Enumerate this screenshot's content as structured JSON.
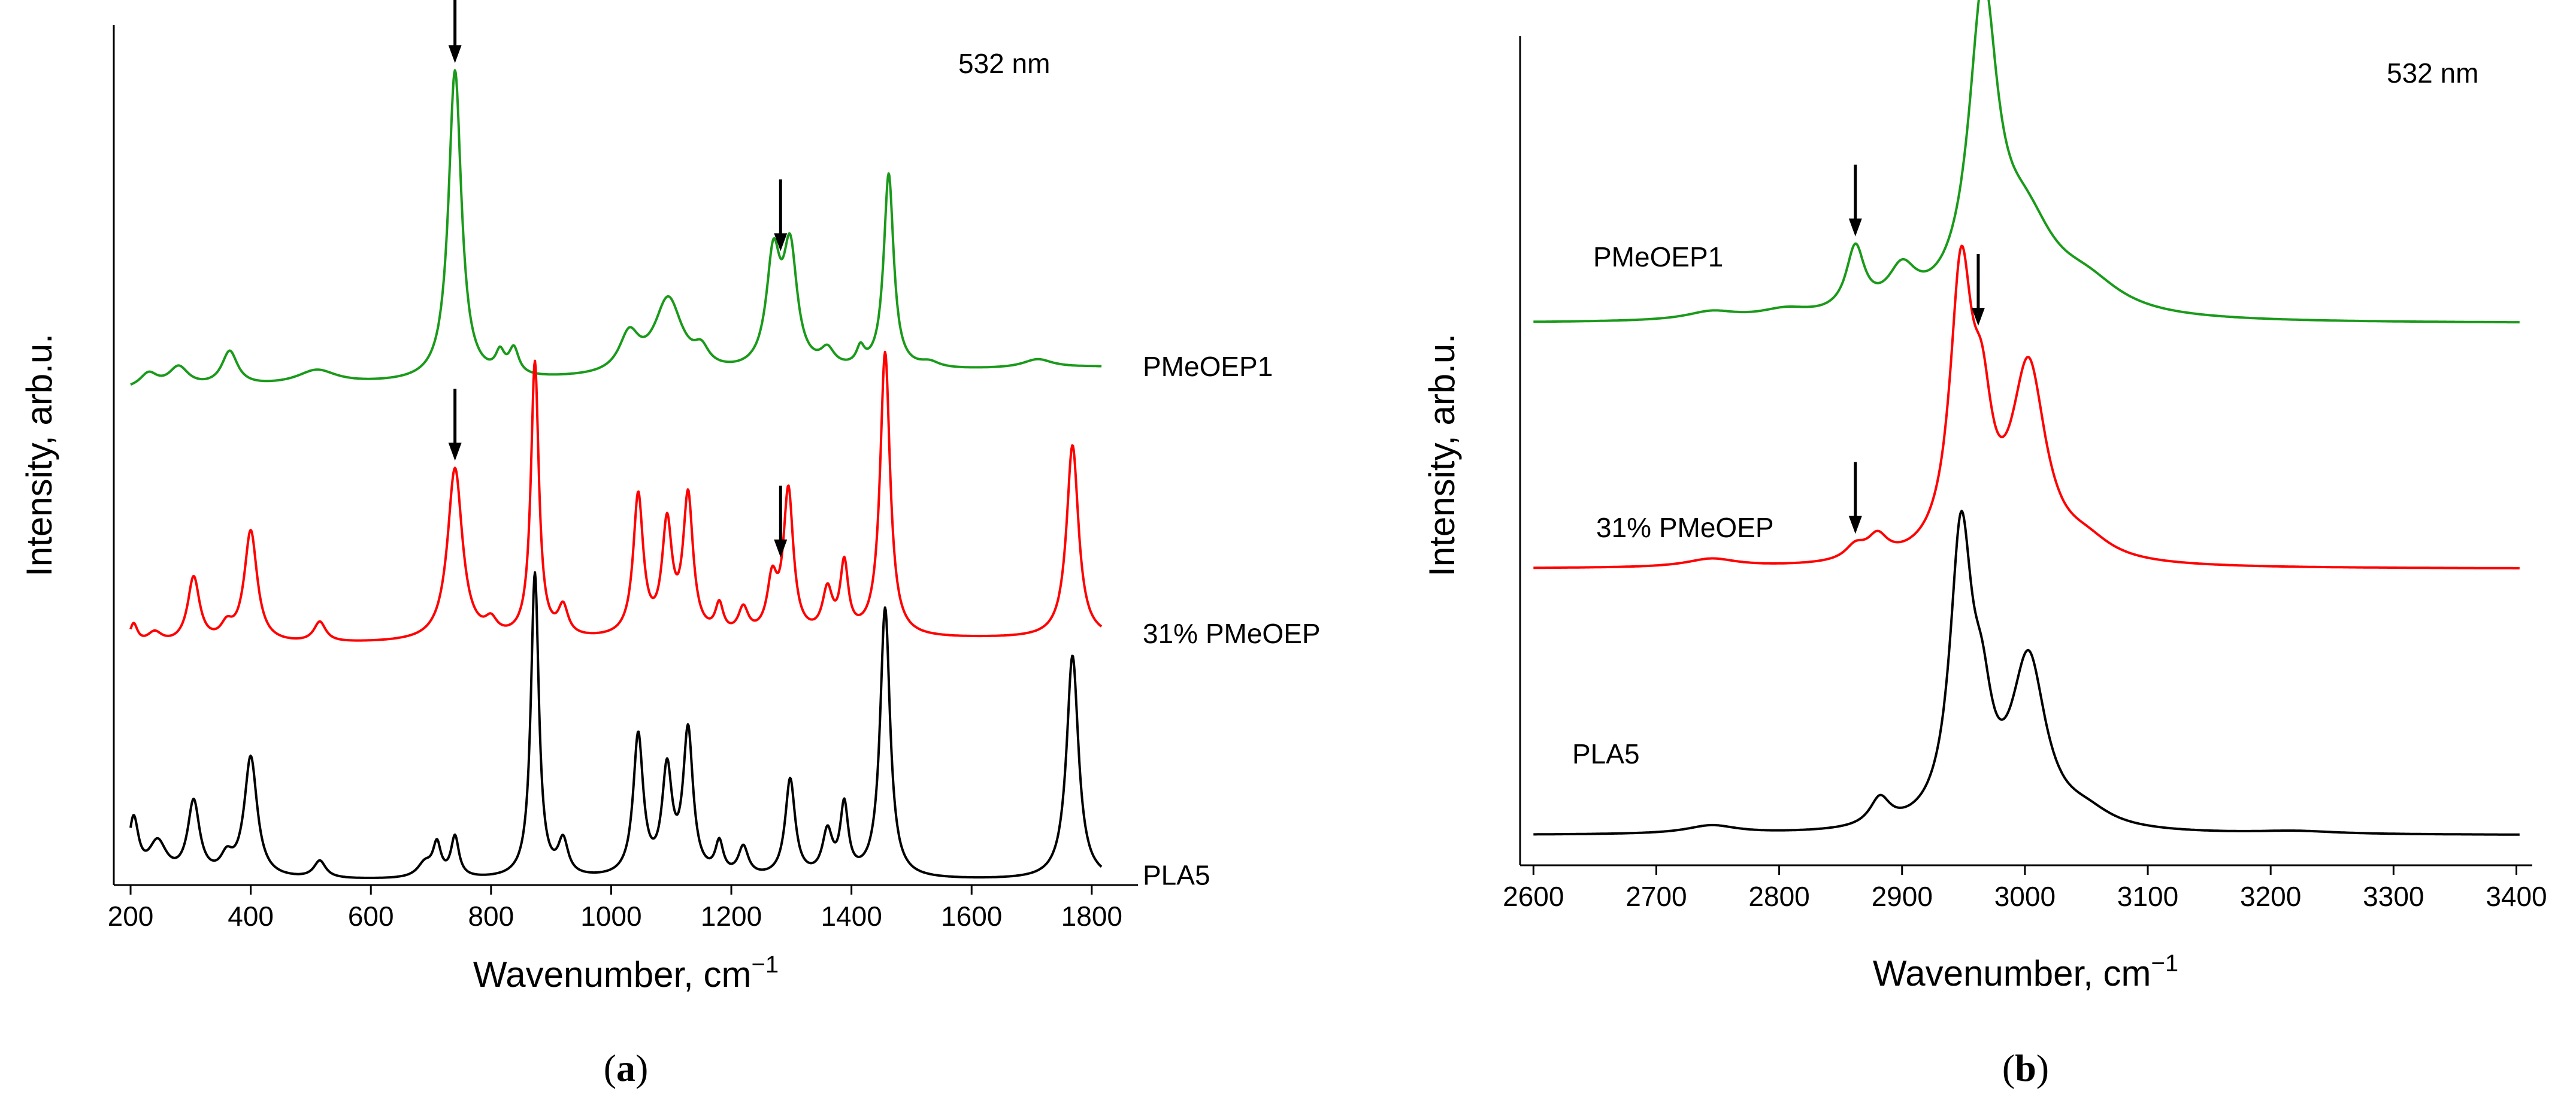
{
  "colors": {
    "PMeOEP1": "#1a9a1a",
    "31% PMeOEP": "#ff0000",
    "PLA5": "#000000"
  },
  "panel_labels": [
    {
      "open": "(",
      "letter": "a",
      "close": ")"
    },
    {
      "open": "(",
      "letter": "b",
      "close": ")"
    }
  ],
  "chart_data": [
    {
      "type": "line",
      "panel": "a",
      "title": "",
      "annotation": "532 nm",
      "xlabel_base": "Wavenumber, cm",
      "xlabel_sup": "−1",
      "ylabel": "Intensity, arb.u.",
      "xlim": [
        190,
        1855
      ],
      "xticks": [
        200,
        400,
        600,
        800,
        1000,
        1200,
        1400,
        1600,
        1800
      ],
      "ylim": [
        0,
        3.6
      ],
      "series": [
        {
          "name": "PMeOEP1",
          "color": "#1a9a1a",
          "offset": 2.32,
          "label_x": 1810,
          "baseline": [
            [
              200,
              0.0
            ],
            [
              600,
              0.02
            ],
            [
              1000,
              0.04
            ],
            [
              1400,
              0.06
            ],
            [
              1800,
              0.08
            ],
            [
              1850,
              0.08
            ]
          ],
          "peaks": [
            [
              230,
              0.05,
              18
            ],
            [
              280,
              0.07,
              20
            ],
            [
              365,
              0.12,
              16
            ],
            [
              510,
              0.05,
              40
            ],
            [
              740,
              1.08,
              13
            ],
            [
              815,
              0.07,
              9
            ],
            [
              838,
              0.09,
              10
            ],
            [
              1030,
              0.13,
              20
            ],
            [
              1095,
              0.26,
              28
            ],
            [
              1150,
              0.06,
              15
            ],
            [
              1270,
              0.38,
              14
            ],
            [
              1298,
              0.4,
              14
            ],
            [
              1360,
              0.06,
              14
            ],
            [
              1415,
              0.06,
              8
            ],
            [
              1462,
              0.68,
              10
            ],
            [
              1530,
              0.02,
              20
            ],
            [
              1710,
              0.03,
              30
            ]
          ],
          "arrows_x": [
            740,
            1282
          ]
        },
        {
          "name": "31% PMeOEP",
          "color": "#ff0000",
          "offset": 1.2,
          "label_x": 1810,
          "baseline": [
            [
              200,
              0.0
            ],
            [
              1000,
              0.02
            ],
            [
              1850,
              0.03
            ]
          ],
          "peaks": [
            [
              205,
              0.07,
              8
            ],
            [
              240,
              0.04,
              15
            ],
            [
              305,
              0.23,
              12
            ],
            [
              360,
              0.05,
              12
            ],
            [
              400,
              0.39,
              13
            ],
            [
              515,
              0.07,
              12
            ],
            [
              740,
              0.6,
              15
            ],
            [
              800,
              0.05,
              12
            ],
            [
              873,
              0.96,
              8
            ],
            [
              920,
              0.1,
              10
            ],
            [
              1045,
              0.49,
              10
            ],
            [
              1093,
              0.38,
              10
            ],
            [
              1128,
              0.48,
              10
            ],
            [
              1180,
              0.1,
              8
            ],
            [
              1220,
              0.09,
              10
            ],
            [
              1268,
              0.18,
              10
            ],
            [
              1295,
              0.5,
              10
            ],
            [
              1360,
              0.15,
              10
            ],
            [
              1388,
              0.24,
              8
            ],
            [
              1456,
              0.99,
              10
            ],
            [
              1768,
              0.67,
              12
            ]
          ],
          "arrows_x": [
            740,
            1282
          ]
        },
        {
          "name": "PLA5",
          "color": "#000000",
          "offset": 0.0,
          "label_x": 1810,
          "baseline": [
            [
              200,
              0.0
            ],
            [
              1850,
              0.0
            ]
          ],
          "peaks": [
            [
              205,
              0.2,
              10
            ],
            [
              245,
              0.12,
              18
            ],
            [
              305,
              0.26,
              12
            ],
            [
              360,
              0.06,
              12
            ],
            [
              400,
              0.42,
              13
            ],
            [
              515,
              0.06,
              12
            ],
            [
              690,
              0.05,
              15
            ],
            [
              710,
              0.11,
              8
            ],
            [
              740,
              0.14,
              8
            ],
            [
              873,
              1.06,
              8
            ],
            [
              920,
              0.12,
              10
            ],
            [
              1045,
              0.49,
              10
            ],
            [
              1093,
              0.36,
              10
            ],
            [
              1128,
              0.5,
              10
            ],
            [
              1180,
              0.11,
              8
            ],
            [
              1220,
              0.1,
              10
            ],
            [
              1298,
              0.34,
              10
            ],
            [
              1360,
              0.15,
              10
            ],
            [
              1388,
              0.24,
              8
            ],
            [
              1456,
              0.94,
              10
            ],
            [
              1768,
              0.78,
              12
            ]
          ],
          "arrows_x": []
        }
      ]
    },
    {
      "type": "line",
      "panel": "b",
      "title": "",
      "annotation": "532 nm",
      "xlabel_base": "Wavenumber, cm",
      "xlabel_sup": "−1",
      "ylabel": "Intensity, arb.u.",
      "xlim": [
        2594,
        3410
      ],
      "xticks": [
        2600,
        2700,
        2800,
        2900,
        3000,
        3100,
        3200,
        3300,
        3400
      ],
      "ylim": [
        0,
        3.6
      ],
      "series": [
        {
          "name": "PMeOEP1",
          "color": "#1a9a1a",
          "offset": 2.18,
          "label_x": 2660,
          "baseline": [
            [
              2600,
              0.0
            ],
            [
              3400,
              0.0
            ]
          ],
          "peaks": [
            [
              2745,
              0.03,
              25
            ],
            [
              2805,
              0.03,
              25
            ],
            [
              2862,
              0.23,
              9
            ],
            [
              2900,
              0.14,
              14
            ],
            [
              2966,
              1.1,
              14
            ],
            [
              3000,
              0.3,
              30
            ],
            [
              3050,
              0.1,
              35
            ]
          ],
          "arrows_x": [
            2862,
            2966
          ]
        },
        {
          "name": "31% PMeOEP",
          "color": "#ff0000",
          "offset": 1.07,
          "label_x": 2660,
          "baseline": [
            [
              2600,
              0.0
            ],
            [
              3400,
              0.0
            ]
          ],
          "peaks": [
            [
              2745,
              0.03,
              25
            ],
            [
              2862,
              0.05,
              10
            ],
            [
              2880,
              0.08,
              10
            ],
            [
              2948,
              1.0,
              11
            ],
            [
              2965,
              0.4,
              10
            ],
            [
              3003,
              0.69,
              17
            ],
            [
              3050,
              0.06,
              25
            ]
          ],
          "arrows_x": [
            2862,
            2962
          ]
        },
        {
          "name": "PLA5",
          "color": "#000000",
          "offset": 0.0,
          "label_x": 2660,
          "baseline": [
            [
              2600,
              0.0
            ],
            [
              3400,
              0.0
            ]
          ],
          "peaks": [
            [
              2745,
              0.03,
              25
            ],
            [
              2882,
              0.1,
              10
            ],
            [
              2948,
              1.04,
              11
            ],
            [
              2965,
              0.3,
              10
            ],
            [
              3003,
              0.6,
              17
            ],
            [
              3050,
              0.05,
              25
            ],
            [
              3220,
              0.01,
              40
            ]
          ],
          "arrows_x": []
        }
      ]
    }
  ]
}
